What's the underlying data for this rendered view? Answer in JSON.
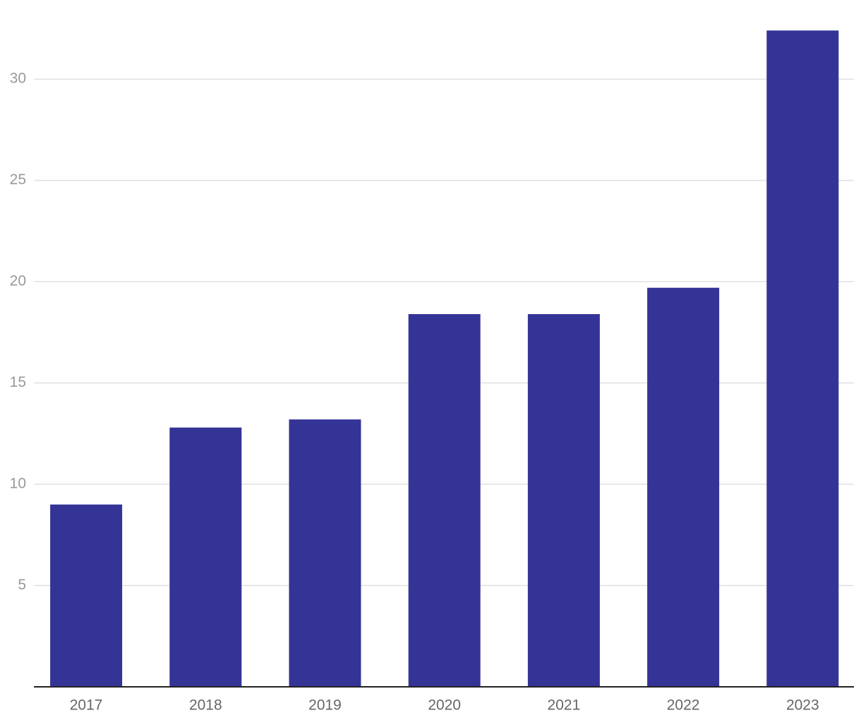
{
  "chart_data": {
    "type": "bar",
    "categories": [
      "2017",
      "2018",
      "2019",
      "2020",
      "2021",
      "2022",
      "2023"
    ],
    "values": [
      9.0,
      12.8,
      13.2,
      18.4,
      18.4,
      19.7,
      32.4
    ],
    "color": "#343497",
    "ylim": [
      0,
      33
    ],
    "yticks": [
      5,
      10,
      15,
      20,
      25,
      30
    ],
    "grid": true
  }
}
